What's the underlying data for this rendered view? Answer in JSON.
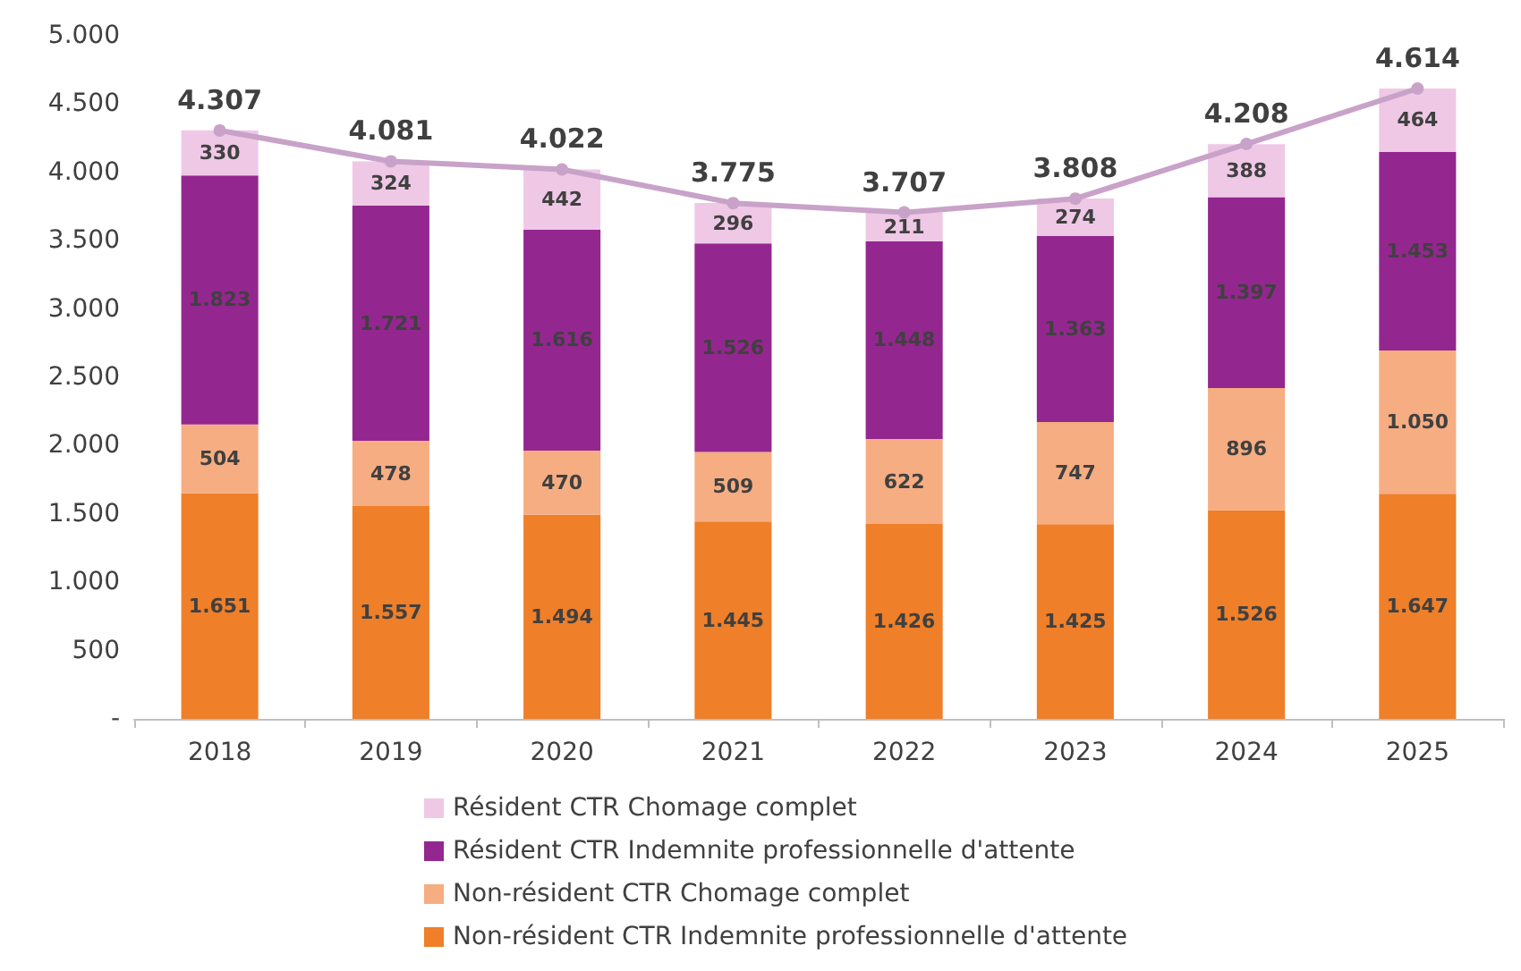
{
  "chart_data": {
    "type": "bar",
    "stacked": true,
    "categories": [
      "2018",
      "2019",
      "2020",
      "2021",
      "2022",
      "2023",
      "2024",
      "2025"
    ],
    "series": [
      {
        "name": "Non-résident CTR Indemnite professionnelle d'attente",
        "color": "#ef7f29",
        "values": [
          1651,
          1557,
          1494,
          1445,
          1426,
          1425,
          1526,
          1647
        ],
        "value_labels": [
          "1.651",
          "1.557",
          "1.494",
          "1.445",
          "1.426",
          "1.425",
          "1.526",
          "1.647"
        ]
      },
      {
        "name": "Non-résident CTR Chomage complet",
        "color": "#f6ad82",
        "values": [
          504,
          478,
          470,
          509,
          622,
          747,
          896,
          1050
        ],
        "value_labels": [
          "504",
          "478",
          "470",
          "509",
          "622",
          "747",
          "896",
          "1.050"
        ]
      },
      {
        "name": "Résident CTR Indemnite professionnelle d'attente",
        "color": "#93278f",
        "values": [
          1823,
          1721,
          1616,
          1526,
          1448,
          1363,
          1397,
          1453
        ],
        "value_labels": [
          "1.823",
          "1.721",
          "1.616",
          "1.526",
          "1.448",
          "1.363",
          "1.397",
          "1.453"
        ]
      },
      {
        "name": "Résident CTR Chomage complet",
        "color": "#efc8e6",
        "values": [
          330,
          324,
          442,
          296,
          211,
          274,
          388,
          464
        ],
        "value_labels": [
          "330",
          "324",
          "442",
          "296",
          "211",
          "274",
          "388",
          "464"
        ]
      },
      {
        "type": "line",
        "color": "#c8a2c8",
        "values": [
          4307,
          4081,
          4022,
          3775,
          3707,
          3808,
          4208,
          4614
        ],
        "value_labels": [
          "4.307",
          "4.081",
          "4.022",
          "3.775",
          "3.707",
          "3.808",
          "4.208",
          "4.614"
        ]
      }
    ],
    "ylim": [
      0,
      5000
    ],
    "yticks": [
      {
        "value": 0,
        "label": "-"
      },
      {
        "value": 500,
        "label": "500"
      },
      {
        "value": 1000,
        "label": "1.000"
      },
      {
        "value": 1500,
        "label": "1.500"
      },
      {
        "value": 2000,
        "label": "2.000"
      },
      {
        "value": 2500,
        "label": "2.500"
      },
      {
        "value": 3000,
        "label": "3.000"
      },
      {
        "value": 3500,
        "label": "3.500"
      },
      {
        "value": 4000,
        "label": "4.000"
      },
      {
        "value": 4500,
        "label": "4.500"
      },
      {
        "value": 5000,
        "label": "5.000"
      }
    ],
    "grid": false,
    "legend": "bottom",
    "marker": "circle"
  }
}
